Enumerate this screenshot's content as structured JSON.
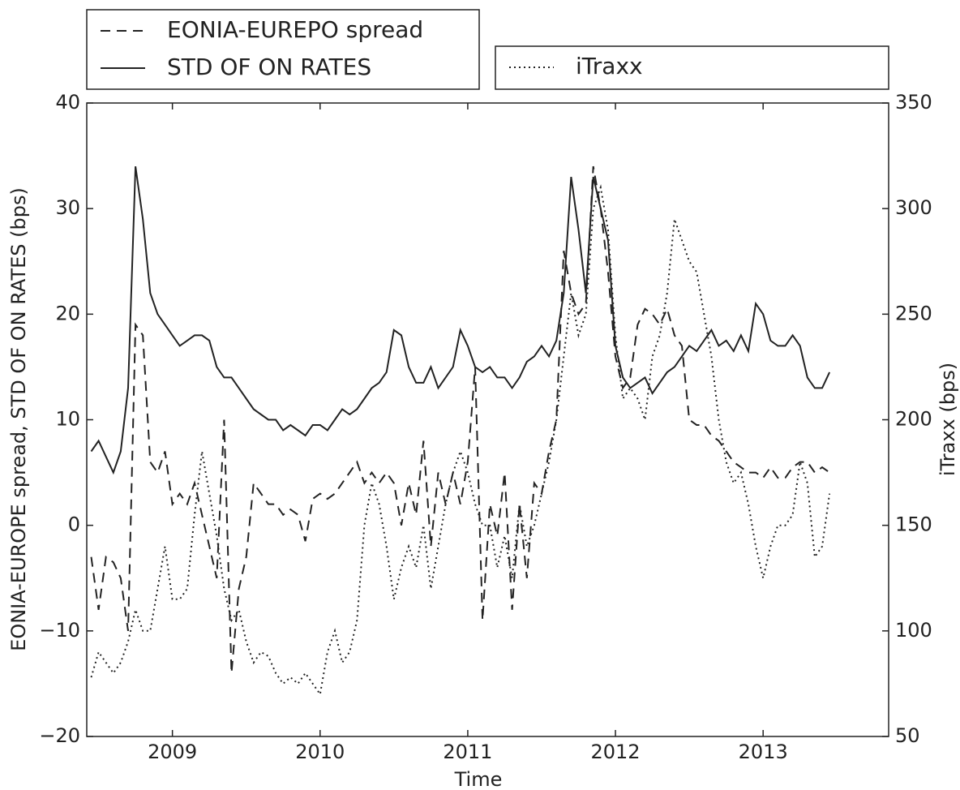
{
  "chart_data": {
    "type": "line",
    "xlabel": "Time",
    "ylabel": "EONIA-EUROPE spread, STD OF ON RATES (bps)",
    "y2label": "iTraxx (bps)",
    "xlim": [
      2008.42,
      2013.85
    ],
    "xticks": [
      2009,
      2010,
      2011,
      2012,
      2013
    ],
    "ylim": [
      -20,
      40
    ],
    "yticks": [
      {
        "value": -20,
        "label": "−20"
      },
      {
        "value": -10,
        "label": "−10"
      },
      0,
      10,
      20,
      30,
      40
    ],
    "y2lim": [
      50,
      350
    ],
    "y2ticks": [
      50,
      100,
      150,
      200,
      250,
      300,
      350
    ],
    "x": [
      2008.45,
      2008.5,
      2008.55,
      2008.6,
      2008.65,
      2008.7,
      2008.75,
      2008.8,
      2008.85,
      2008.9,
      2008.95,
      2009,
      2009.05,
      2009.1,
      2009.15,
      2009.2,
      2009.25,
      2009.3,
      2009.35,
      2009.4,
      2009.45,
      2009.5,
      2009.55,
      2009.6,
      2009.65,
      2009.7,
      2009.75,
      2009.8,
      2009.85,
      2009.9,
      2009.95,
      2010,
      2010.05,
      2010.1,
      2010.15,
      2010.2,
      2010.25,
      2010.3,
      2010.35,
      2010.4,
      2010.45,
      2010.5,
      2010.55,
      2010.6,
      2010.65,
      2010.7,
      2010.75,
      2010.8,
      2010.85,
      2010.9,
      2010.95,
      2011,
      2011.05,
      2011.1,
      2011.15,
      2011.2,
      2011.25,
      2011.3,
      2011.35,
      2011.4,
      2011.45,
      2011.5,
      2011.55,
      2011.6,
      2011.65,
      2011.7,
      2011.75,
      2011.8,
      2011.85,
      2011.9,
      2011.95,
      2012,
      2012.05,
      2012.1,
      2012.15,
      2012.2,
      2012.25,
      2012.3,
      2012.35,
      2012.4,
      2012.45,
      2012.5,
      2012.55,
      2012.6,
      2012.65,
      2012.7,
      2012.75,
      2012.8,
      2012.85,
      2012.9,
      2012.95,
      2013,
      2013.05,
      2013.1,
      2013.15,
      2013.2,
      2013.25,
      2013.3,
      2013.35,
      2013.4,
      2013.45
    ],
    "series": [
      {
        "name": "EONIA-EUREPO spread",
        "color": "#222222",
        "dash": "dashed",
        "values": [
          -3,
          -8,
          -3,
          -3.5,
          -5,
          -10,
          19,
          18,
          6,
          5,
          7,
          2,
          3,
          2,
          4,
          1,
          -2,
          -5,
          10,
          -14,
          -6,
          -3,
          4,
          3,
          2,
          2,
          1,
          1.5,
          1,
          -1.5,
          2.5,
          3,
          2.5,
          3,
          4,
          5,
          6,
          4,
          5,
          4,
          5,
          4,
          0,
          4,
          1,
          8,
          -2,
          5,
          2,
          5,
          2,
          6,
          15,
          -9,
          2,
          -1,
          5,
          -8,
          2,
          -5,
          4,
          3,
          7,
          10,
          26,
          22,
          20,
          21,
          34,
          30,
          24,
          16,
          13,
          14,
          19,
          20.5,
          20,
          19,
          20.5,
          18,
          17,
          10,
          9.5,
          9.5,
          8.5,
          8,
          7,
          6,
          5.5,
          5,
          5,
          4.5,
          5.5,
          4.5,
          4.5,
          5.5,
          6,
          6,
          5,
          5.5,
          5
        ]
      },
      {
        "name": "STD OF ON RATES",
        "color": "#222222",
        "dash": "solid",
        "values": [
          7,
          8,
          6.5,
          5,
          7,
          13,
          34,
          29,
          22,
          20,
          19,
          18,
          17,
          17.5,
          18,
          18,
          17.5,
          15,
          14,
          14,
          13,
          12,
          11,
          10.5,
          10,
          10,
          9,
          9.5,
          9,
          8.5,
          9.5,
          9.5,
          9,
          10,
          11,
          10.5,
          11,
          12,
          13,
          13.5,
          14.5,
          18.5,
          18,
          15,
          13.5,
          13.5,
          15,
          13,
          14,
          15,
          18.5,
          17,
          15,
          14.5,
          15,
          14,
          14,
          13,
          14,
          15.5,
          16,
          17,
          16,
          17.5,
          22,
          33,
          28,
          22,
          33,
          30,
          27,
          17,
          14,
          13,
          13.5,
          14,
          12.5,
          13.5,
          14.5,
          15,
          16,
          17,
          16.5,
          17.5,
          18.5,
          17,
          17.5,
          16.5,
          18,
          16.5,
          21,
          20,
          17.5,
          17,
          17,
          18,
          17,
          14,
          13,
          13,
          14.5
        ]
      },
      {
        "name": "iTraxx",
        "color": "#222222",
        "dash": "dotted",
        "axis": "y2",
        "values": [
          78,
          90,
          85,
          80,
          85,
          95,
          110,
          100,
          100,
          120,
          140,
          115,
          115,
          120,
          155,
          185,
          165,
          145,
          120,
          105,
          110,
          95,
          85,
          90,
          88,
          80,
          75,
          78,
          75,
          80,
          75,
          70,
          90,
          100,
          85,
          90,
          105,
          150,
          170,
          160,
          140,
          115,
          130,
          140,
          130,
          150,
          120,
          140,
          160,
          175,
          185,
          175,
          160,
          150,
          150,
          130,
          145,
          125,
          160,
          140,
          150,
          165,
          180,
          200,
          230,
          260,
          240,
          250,
          300,
          310,
          290,
          240,
          210,
          215,
          210,
          200,
          230,
          240,
          260,
          295,
          285,
          275,
          270,
          250,
          230,
          200,
          180,
          170,
          175,
          160,
          140,
          125,
          140,
          150,
          150,
          155,
          180,
          170,
          135,
          140,
          165
        ]
      }
    ]
  }
}
